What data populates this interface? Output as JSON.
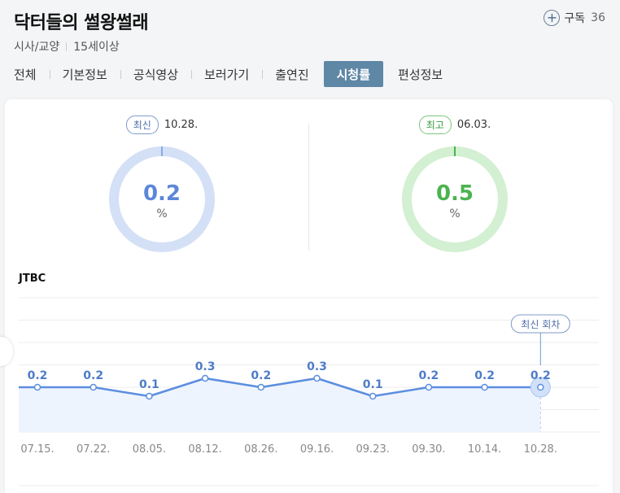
{
  "program": {
    "title": "닥터들의 썰왕썰래",
    "category": "시사/교양",
    "rating": "15세이상",
    "subscribe_label": "구독",
    "subscribe_count": "36"
  },
  "tabs": [
    {
      "label": "전체"
    },
    {
      "label": "기본정보"
    },
    {
      "label": "공식영상"
    },
    {
      "label": "보러가기"
    },
    {
      "label": "출연진"
    },
    {
      "label": "시청률",
      "active": true
    },
    {
      "label": "편성정보"
    }
  ],
  "summary": {
    "latest": {
      "badge": "최신",
      "date": "10.28.",
      "value": "0.2",
      "unit": "%"
    },
    "best": {
      "badge": "최고",
      "date": "06.03.",
      "value": "0.5",
      "unit": "%"
    }
  },
  "chart_data": {
    "type": "line",
    "channel": "JTBC",
    "categories": [
      "07.15.",
      "07.22.",
      "08.05.",
      "08.12.",
      "08.26.",
      "09.16.",
      "09.23.",
      "09.30.",
      "10.14.",
      "10.28."
    ],
    "values": [
      0.2,
      0.2,
      0.1,
      0.3,
      0.2,
      0.3,
      0.1,
      0.2,
      0.2,
      0.2
    ],
    "data_labels": [
      "0.2",
      "0.2",
      "0.1",
      "0.3",
      "0.2",
      "0.3",
      "0.1",
      "0.2",
      "0.2",
      "0.2"
    ],
    "latest_marker_label": "최신 회차",
    "ylim": [
      -0.3,
      1.2
    ],
    "grid": true,
    "colors": {
      "line": "#5b8ee0",
      "area": "#eef4fd",
      "label": "#4e7cc8"
    }
  },
  "colors": {
    "tab_active": "#5f87a6",
    "latest_ring": "#d4e0f6",
    "latest_text": "#5b87d9",
    "best_ring": "#d3f0d2",
    "best_text": "#4bb34f"
  }
}
